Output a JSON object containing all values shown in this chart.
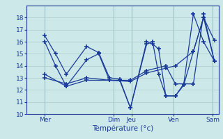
{
  "background_color": "#cce8e8",
  "grid_color": "#aacccc",
  "line_color": "#1a3a9a",
  "marker": "+",
  "xlabel": "Température (°c)",
  "ylim": [
    10,
    19
  ],
  "yticks": [
    10,
    11,
    12,
    13,
    14,
    15,
    16,
    17,
    18
  ],
  "xlim": [
    0,
    320
  ],
  "day_positions": [
    30,
    145,
    175,
    245,
    310
  ],
  "day_labels": [
    "Mer",
    "Dim",
    "Jeu",
    "Ven",
    "Sam"
  ],
  "line1_x": [
    30,
    48,
    66,
    100,
    120,
    138,
    155,
    173,
    200,
    210,
    220,
    232,
    248,
    262,
    278,
    295,
    313
  ],
  "line1_y": [
    16.5,
    15.0,
    13.3,
    15.6,
    15.1,
    13.0,
    12.9,
    10.5,
    16.0,
    15.8,
    15.4,
    11.5,
    11.5,
    12.4,
    15.2,
    18.0,
    16.1
  ],
  "line2_x": [
    30,
    48,
    66,
    100,
    120,
    138,
    155,
    173,
    200,
    210,
    220,
    232,
    248,
    262,
    278,
    295,
    313
  ],
  "line2_y": [
    16.0,
    14.0,
    12.3,
    14.5,
    15.0,
    12.8,
    12.8,
    10.5,
    15.8,
    16.0,
    13.3,
    11.5,
    11.5,
    12.5,
    18.3,
    16.0,
    14.4
  ],
  "line3_x": [
    30,
    66,
    100,
    138,
    173,
    200,
    232,
    248,
    278,
    295,
    313
  ],
  "line3_y": [
    13.0,
    12.5,
    13.0,
    12.8,
    12.7,
    13.4,
    13.8,
    14.0,
    15.2,
    18.0,
    14.4
  ],
  "line4_x": [
    30,
    66,
    100,
    138,
    173,
    200,
    232,
    248,
    278,
    295,
    313
  ],
  "line4_y": [
    13.3,
    12.3,
    12.8,
    12.8,
    12.8,
    13.6,
    14.0,
    12.5,
    12.5,
    18.3,
    14.4
  ]
}
